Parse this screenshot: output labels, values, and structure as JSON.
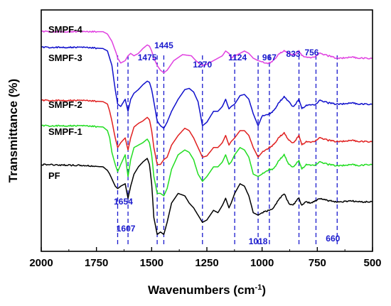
{
  "chart_data": {
    "type": "line",
    "title": "",
    "xlabel": "Wavenumbers (cm",
    "xlabel_sup": "-1",
    "xlabel_suffix": ")",
    "ylabel": "Transmittance (%)",
    "xlim": [
      2000,
      500
    ],
    "x_reversed": true,
    "xticks": [
      "2000",
      "1750",
      "1500",
      "1250",
      "1000",
      "750",
      "500"
    ],
    "xtick_values": [
      2000,
      1750,
      1500,
      1250,
      1000,
      750,
      500
    ],
    "y_ticks_shown": false,
    "grid": false,
    "legend": "inline labels at left",
    "annotation_color": "#1a1acd",
    "annotations": [
      {
        "label": "1654",
        "x": 1654
      },
      {
        "label": "1607",
        "x": 1607
      },
      {
        "label": "1475",
        "x": 1475
      },
      {
        "label": "1445",
        "x": 1445
      },
      {
        "label": "1270",
        "x": 1270
      },
      {
        "label": "1124",
        "x": 1124
      },
      {
        "label": "1018",
        "x": 1018
      },
      {
        "label": "967",
        "x": 967
      },
      {
        "label": "833",
        "x": 833
      },
      {
        "label": "756",
        "x": 756
      },
      {
        "label": "660",
        "x": 660
      }
    ],
    "series": [
      {
        "name": "SMPF-4",
        "color": "#e040e0",
        "x": [
          2000,
          1720,
          1700,
          1680,
          1660,
          1654,
          1640,
          1620,
          1607,
          1595,
          1580,
          1560,
          1540,
          1520,
          1510,
          1500,
          1490,
          1475,
          1460,
          1445,
          1430,
          1400,
          1360,
          1320,
          1300,
          1280,
          1270,
          1250,
          1220,
          1200,
          1180,
          1165,
          1150,
          1140,
          1124,
          1100,
          1080,
          1060,
          1040,
          1018,
          1000,
          985,
          967,
          950,
          920,
          900,
          880,
          860,
          845,
          833,
          820,
          800,
          780,
          756,
          740,
          720,
          700,
          660,
          640,
          600,
          560,
          520,
          500
        ],
        "y": [
          0.91,
          0.91,
          0.9,
          0.87,
          0.82,
          0.8,
          0.78,
          0.79,
          0.81,
          0.82,
          0.81,
          0.82,
          0.84,
          0.855,
          0.85,
          0.83,
          0.8,
          0.77,
          0.75,
          0.74,
          0.75,
          0.79,
          0.815,
          0.81,
          0.79,
          0.775,
          0.77,
          0.775,
          0.79,
          0.8,
          0.81,
          0.83,
          0.82,
          0.8,
          0.81,
          0.82,
          0.83,
          0.82,
          0.8,
          0.79,
          0.785,
          0.78,
          0.78,
          0.79,
          0.82,
          0.83,
          0.82,
          0.815,
          0.82,
          0.83,
          0.81,
          0.805,
          0.8,
          0.81,
          0.82,
          0.815,
          0.81,
          0.8,
          0.8,
          0.805,
          0.8,
          0.8,
          0.8
        ]
      },
      {
        "name": "SMPF-3",
        "color": "#1010cc",
        "x": [
          2000,
          1800,
          1720,
          1700,
          1680,
          1665,
          1654,
          1640,
          1620,
          1607,
          1595,
          1580,
          1560,
          1540,
          1520,
          1510,
          1500,
          1490,
          1475,
          1460,
          1445,
          1430,
          1410,
          1380,
          1350,
          1330,
          1310,
          1290,
          1270,
          1250,
          1220,
          1200,
          1180,
          1165,
          1150,
          1140,
          1124,
          1100,
          1080,
          1060,
          1040,
          1018,
          1000,
          985,
          967,
          950,
          920,
          900,
          880,
          860,
          845,
          833,
          820,
          800,
          780,
          756,
          740,
          720,
          700,
          660,
          640,
          600,
          560,
          520,
          500
        ],
        "y": [
          0.845,
          0.845,
          0.84,
          0.83,
          0.77,
          0.67,
          0.61,
          0.6,
          0.63,
          0.58,
          0.63,
          0.655,
          0.67,
          0.69,
          0.705,
          0.7,
          0.67,
          0.62,
          0.54,
          0.52,
          0.51,
          0.535,
          0.58,
          0.63,
          0.67,
          0.675,
          0.66,
          0.62,
          0.52,
          0.535,
          0.58,
          0.58,
          0.6,
          0.63,
          0.59,
          0.6,
          0.61,
          0.645,
          0.65,
          0.63,
          0.57,
          0.52,
          0.56,
          0.565,
          0.57,
          0.58,
          0.62,
          0.64,
          0.62,
          0.6,
          0.615,
          0.63,
          0.59,
          0.605,
          0.605,
          0.61,
          0.625,
          0.62,
          0.615,
          0.61,
          0.61,
          0.615,
          0.61,
          0.61,
          0.61
        ]
      },
      {
        "name": "SMPF-2",
        "color": "#e02020",
        "x": [
          2000,
          1800,
          1720,
          1700,
          1690,
          1680,
          1665,
          1654,
          1640,
          1620,
          1607,
          1595,
          1580,
          1560,
          1540,
          1520,
          1510,
          1500,
          1490,
          1475,
          1460,
          1445,
          1430,
          1410,
          1380,
          1350,
          1330,
          1310,
          1290,
          1270,
          1250,
          1220,
          1200,
          1180,
          1165,
          1150,
          1140,
          1124,
          1100,
          1080,
          1060,
          1040,
          1018,
          1000,
          985,
          967,
          950,
          920,
          900,
          880,
          860,
          845,
          833,
          820,
          800,
          780,
          756,
          740,
          720,
          700,
          660,
          640,
          600,
          560,
          520,
          500
        ],
        "y": [
          0.625,
          0.625,
          0.62,
          0.61,
          0.58,
          0.54,
          0.47,
          0.43,
          0.45,
          0.47,
          0.42,
          0.47,
          0.515,
          0.53,
          0.54,
          0.555,
          0.545,
          0.5,
          0.43,
          0.36,
          0.36,
          0.38,
          0.39,
          0.44,
          0.48,
          0.51,
          0.5,
          0.47,
          0.43,
          0.39,
          0.395,
          0.43,
          0.43,
          0.45,
          0.48,
          0.44,
          0.455,
          0.47,
          0.5,
          0.5,
          0.48,
          0.43,
          0.39,
          0.41,
          0.42,
          0.43,
          0.44,
          0.475,
          0.49,
          0.46,
          0.45,
          0.465,
          0.48,
          0.44,
          0.455,
          0.45,
          0.46,
          0.47,
          0.465,
          0.46,
          0.455,
          0.455,
          0.46,
          0.455,
          0.455,
          0.455
        ]
      },
      {
        "name": "SMPF-1",
        "color": "#22dd22",
        "x": [
          2000,
          1800,
          1720,
          1700,
          1690,
          1680,
          1665,
          1654,
          1640,
          1620,
          1607,
          1595,
          1580,
          1560,
          1540,
          1520,
          1510,
          1500,
          1490,
          1475,
          1460,
          1445,
          1430,
          1410,
          1380,
          1350,
          1330,
          1310,
          1290,
          1270,
          1250,
          1220,
          1200,
          1180,
          1165,
          1150,
          1140,
          1124,
          1100,
          1080,
          1060,
          1040,
          1018,
          1000,
          985,
          967,
          950,
          920,
          900,
          880,
          860,
          845,
          833,
          820,
          800,
          780,
          756,
          740,
          720,
          700,
          660,
          640,
          600,
          560,
          520,
          500
        ],
        "y": [
          0.52,
          0.52,
          0.515,
          0.5,
          0.47,
          0.41,
          0.36,
          0.33,
          0.36,
          0.4,
          0.31,
          0.38,
          0.43,
          0.44,
          0.45,
          0.465,
          0.45,
          0.4,
          0.31,
          0.24,
          0.24,
          0.23,
          0.26,
          0.34,
          0.4,
          0.42,
          0.41,
          0.38,
          0.32,
          0.29,
          0.31,
          0.35,
          0.35,
          0.37,
          0.4,
          0.36,
          0.37,
          0.4,
          0.43,
          0.42,
          0.39,
          0.32,
          0.31,
          0.32,
          0.33,
          0.34,
          0.34,
          0.38,
          0.4,
          0.36,
          0.35,
          0.365,
          0.375,
          0.34,
          0.36,
          0.355,
          0.36,
          0.37,
          0.365,
          0.36,
          0.355,
          0.355,
          0.36,
          0.355,
          0.36,
          0.36
        ]
      },
      {
        "name": "PF",
        "color": "#000000",
        "x": [
          2000,
          1800,
          1720,
          1700,
          1690,
          1680,
          1665,
          1654,
          1640,
          1620,
          1607,
          1595,
          1580,
          1560,
          1540,
          1520,
          1510,
          1500,
          1490,
          1475,
          1460,
          1445,
          1430,
          1410,
          1380,
          1350,
          1330,
          1310,
          1290,
          1270,
          1250,
          1220,
          1200,
          1180,
          1165,
          1150,
          1140,
          1124,
          1100,
          1080,
          1060,
          1040,
          1018,
          1000,
          985,
          967,
          950,
          920,
          900,
          880,
          860,
          845,
          833,
          820,
          800,
          780,
          756,
          740,
          720,
          700,
          660,
          640,
          600,
          560,
          520,
          500
        ],
        "y": [
          0.36,
          0.355,
          0.35,
          0.335,
          0.32,
          0.3,
          0.27,
          0.26,
          0.27,
          0.28,
          0.22,
          0.27,
          0.32,
          0.35,
          0.37,
          0.385,
          0.36,
          0.28,
          0.14,
          0.07,
          0.08,
          0.07,
          0.12,
          0.2,
          0.24,
          0.23,
          0.2,
          0.18,
          0.15,
          0.12,
          0.13,
          0.17,
          0.16,
          0.19,
          0.22,
          0.18,
          0.2,
          0.24,
          0.28,
          0.27,
          0.23,
          0.16,
          0.15,
          0.16,
          0.165,
          0.17,
          0.18,
          0.22,
          0.24,
          0.2,
          0.19,
          0.21,
          0.22,
          0.19,
          0.205,
          0.2,
          0.21,
          0.22,
          0.215,
          0.21,
          0.205,
          0.205,
          0.21,
          0.205,
          0.205,
          0.205
        ]
      }
    ]
  }
}
